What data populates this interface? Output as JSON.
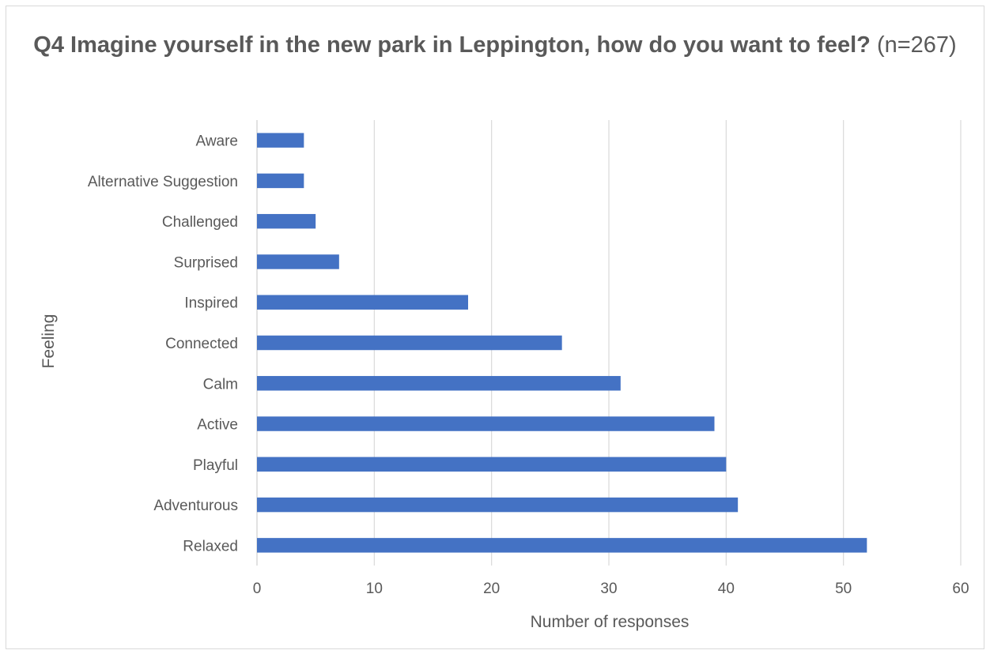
{
  "chart_data": {
    "type": "bar",
    "orientation": "horizontal",
    "title": {
      "bold": "Q4 Imagine yourself in the new park in Leppington, how do you want to feel?",
      "normal": "(n=267)"
    },
    "xlabel": "Number of responses",
    "ylabel": "Feeling",
    "categories": [
      "Relaxed",
      "Adventurous",
      "Playful",
      "Active",
      "Calm",
      "Connected",
      "Inspired",
      "Surprised",
      "Challenged",
      "Alternative Suggestion",
      "Aware"
    ],
    "values": [
      52,
      41,
      40,
      39,
      31,
      26,
      18,
      7,
      5,
      4,
      4
    ],
    "xlim": [
      0,
      60
    ],
    "xticks": [
      0,
      10,
      20,
      30,
      40,
      50,
      60
    ],
    "grid": "vertical",
    "legend": "none",
    "colors": {
      "bar": "#4472c4",
      "grid": "#d9d9d9",
      "text": "#595959"
    }
  }
}
